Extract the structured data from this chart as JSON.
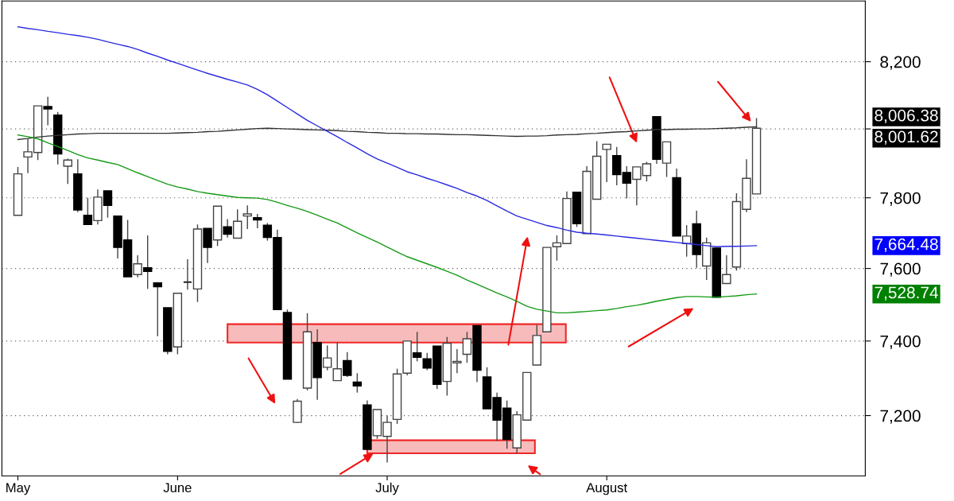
{
  "chart_data": {
    "type": "candlestick",
    "categories": [
      "May",
      null,
      null,
      null,
      null,
      null,
      null,
      null,
      null,
      null,
      null,
      null,
      null,
      null,
      null,
      null,
      "June",
      null,
      null,
      null,
      null,
      null,
      null,
      null,
      null,
      null,
      null,
      null,
      null,
      null,
      null,
      null,
      null,
      null,
      null,
      null,
      null,
      "July",
      null,
      null,
      null,
      null,
      null,
      null,
      null,
      null,
      null,
      null,
      null,
      null,
      null,
      null,
      null,
      null,
      null,
      null,
      null,
      null,
      null,
      "August",
      null,
      null,
      null,
      null,
      null,
      null,
      null,
      null,
      null,
      null,
      null,
      null,
      null,
      null,
      null
    ],
    "ohlc": [
      [
        7750,
        7889,
        7750,
        7869
      ],
      [
        7918,
        7971,
        7871,
        7933
      ],
      [
        7931,
        8068,
        7909,
        8068
      ],
      [
        8066,
        8095,
        8011,
        8059
      ],
      [
        8041,
        8050,
        7896,
        7927
      ],
      [
        7891,
        7913,
        7840,
        7909
      ],
      [
        7869,
        7911,
        7759,
        7765
      ],
      [
        7750,
        7800,
        7724,
        7724
      ],
      [
        7735,
        7824,
        7724,
        7802
      ],
      [
        7820,
        7820,
        7743,
        7778
      ],
      [
        7748,
        7748,
        7628,
        7659
      ],
      [
        7680,
        7737,
        7577,
        7577
      ],
      [
        7583,
        7637,
        7575,
        7613
      ],
      [
        7602,
        7693,
        7543,
        7592
      ],
      [
        7560,
        7560,
        7413,
        7549
      ],
      [
        7491,
        7491,
        7364,
        7372
      ],
      [
        7384,
        7531,
        7364,
        7531
      ],
      [
        7562,
        7626,
        7541,
        7562
      ],
      [
        7543,
        7724,
        7507,
        7711
      ],
      [
        7713,
        7713,
        7615,
        7659
      ],
      [
        7680,
        7776,
        7663,
        7776
      ],
      [
        7717,
        7739,
        7687,
        7696
      ],
      [
        7685,
        7767,
        7685,
        7733
      ],
      [
        7748,
        7778,
        7711,
        7754
      ],
      [
        7743,
        7754,
        7713,
        7737
      ],
      [
        7722,
        7728,
        7678,
        7687
      ],
      [
        7687,
        7709,
        7486,
        7486
      ],
      [
        7478,
        7486,
        7297,
        7297
      ],
      [
        7182,
        7244,
        7180,
        7238
      ],
      [
        7273,
        7476,
        7267,
        7425
      ],
      [
        7396,
        7432,
        7242,
        7301
      ],
      [
        7329,
        7388,
        7321,
        7354
      ],
      [
        7293,
        7396,
        7293,
        7325
      ],
      [
        7347,
        7370,
        7303,
        7307
      ],
      [
        7289,
        7313,
        7261,
        7279
      ],
      [
        7228,
        7240,
        7111,
        7111
      ],
      [
        7147,
        7216,
        7139,
        7216
      ],
      [
        7145,
        7200,
        7077,
        7182
      ],
      [
        7190,
        7325,
        7178,
        7311
      ],
      [
        7313,
        7400,
        7307,
        7400
      ],
      [
        7368,
        7425,
        7345,
        7356
      ],
      [
        7352,
        7368,
        7321,
        7327
      ],
      [
        7386,
        7386,
        7271,
        7283
      ],
      [
        7291,
        7411,
        7253,
        7394
      ],
      [
        7341,
        7378,
        7313,
        7345
      ],
      [
        7364,
        7425,
        7341,
        7406
      ],
      [
        7442,
        7442,
        7289,
        7321
      ],
      [
        7303,
        7329,
        7218,
        7218
      ],
      [
        7248,
        7261,
        7133,
        7188
      ],
      [
        7220,
        7240,
        7113,
        7137
      ],
      [
        7115,
        7212,
        7101,
        7202
      ],
      [
        7188,
        7315,
        7188,
        7315
      ],
      [
        7335,
        7444,
        7335,
        7415
      ],
      [
        7425,
        7659,
        7425,
        7659
      ],
      [
        7661,
        7693,
        7622,
        7672
      ],
      [
        7670,
        7818,
        7670,
        7798
      ],
      [
        7816,
        7816,
        7717,
        7726
      ],
      [
        7698,
        7891,
        7698,
        7876
      ],
      [
        7796,
        7964,
        7796,
        7920
      ],
      [
        7940,
        7955,
        7845,
        7955
      ],
      [
        7922,
        7947,
        7836,
        7867
      ],
      [
        7873,
        7891,
        7798,
        7842
      ],
      [
        7853,
        7889,
        7778,
        7889
      ],
      [
        7864,
        7904,
        7847,
        7898
      ],
      [
        8036,
        8036,
        7898,
        7911
      ],
      [
        7900,
        7962,
        7860,
        7962
      ],
      [
        7858,
        7884,
        7691,
        7691
      ],
      [
        7670,
        7722,
        7633,
        7691
      ],
      [
        7726,
        7763,
        7602,
        7639
      ],
      [
        7607,
        7687,
        7568,
        7672
      ],
      [
        7657,
        7657,
        7520,
        7520
      ],
      [
        7558,
        7637,
        7558,
        7583
      ],
      [
        7604,
        7813,
        7594,
        7789
      ],
      [
        7767,
        7911,
        7759,
        7856
      ],
      [
        7811,
        8032,
        7811,
        8002
      ]
    ],
    "series": [
      {
        "type": "line",
        "color": "#333333",
        "values": [
          7969,
          7972,
          7976,
          7979,
          7981,
          7983,
          7985,
          7986,
          7987,
          7987,
          7987,
          7987,
          7987,
          7987,
          7987,
          7987,
          7988,
          7989,
          7990,
          7992,
          7993,
          7995,
          7997,
          7999,
          8001,
          8002,
          8001,
          8000,
          7999,
          7998,
          7997,
          7996,
          7995,
          7993,
          7992,
          7990,
          7989,
          7987,
          7987,
          7986,
          7986,
          7985,
          7985,
          7984,
          7983,
          7983,
          7982,
          7981,
          7980,
          7979,
          7978,
          7979,
          7979,
          7980,
          7982,
          7983,
          7984,
          7986,
          7987,
          7989,
          7991,
          7992,
          7994,
          7996,
          7998,
          7998,
          7999,
          7999,
          8000,
          8000,
          8001,
          8002,
          8003,
          8005,
          8006
        ]
      },
      {
        "type": "line",
        "color": "#2a2ae0",
        "values": [
          8306,
          8301,
          8297,
          8292,
          8288,
          8283,
          8279,
          8274,
          8268,
          8260,
          8253,
          8246,
          8237,
          8226,
          8216,
          8205,
          8195,
          8185,
          8175,
          8165,
          8156,
          8147,
          8139,
          8130,
          8117,
          8101,
          8082,
          8063,
          8044,
          8025,
          8009,
          7993,
          7977,
          7960,
          7944,
          7927,
          7912,
          7900,
          7888,
          7875,
          7866,
          7856,
          7847,
          7837,
          7827,
          7815,
          7805,
          7792,
          7777,
          7762,
          7748,
          7739,
          7730,
          7721,
          7715,
          7708,
          7702,
          7699,
          7697,
          7694,
          7691,
          7688,
          7685,
          7682,
          7679,
          7676,
          7673,
          7670,
          7667,
          7664,
          7661,
          7662,
          7662,
          7663,
          7664
        ]
      },
      {
        "type": "line",
        "color": "#159a15",
        "values": [
          7982,
          7977,
          7971,
          7959,
          7948,
          7937,
          7925,
          7915,
          7909,
          7902,
          7896,
          7884,
          7872,
          7861,
          7850,
          7839,
          7831,
          7825,
          7818,
          7813,
          7809,
          7805,
          7801,
          7800,
          7799,
          7795,
          7787,
          7778,
          7770,
          7761,
          7750,
          7739,
          7728,
          7714,
          7700,
          7687,
          7674,
          7660,
          7646,
          7633,
          7623,
          7613,
          7603,
          7592,
          7581,
          7568,
          7556,
          7544,
          7532,
          7521,
          7509,
          7495,
          7487,
          7482,
          7477,
          7477,
          7479,
          7481,
          7483,
          7485,
          7489,
          7494,
          7498,
          7503,
          7509,
          7514,
          7519,
          7522,
          7522,
          7521,
          7520,
          7522,
          7524,
          7527,
          7529
        ]
      }
    ],
    "ylim": [
      7042,
      8385
    ],
    "yticks": [
      {
        "value": 7200,
        "label": "7,200"
      },
      {
        "value": 7400,
        "label": "7,400"
      },
      {
        "value": 7600,
        "label": "7,600"
      },
      {
        "value": 7800,
        "label": "7,800"
      },
      {
        "value": 8000,
        "label": null
      },
      {
        "value": 8200,
        "label": "8,200"
      }
    ],
    "log": true,
    "grid": "y",
    "annotations": [
      "8,006.38",
      "8,001.62",
      "7,664.48",
      "7,528.74"
    ]
  }
}
